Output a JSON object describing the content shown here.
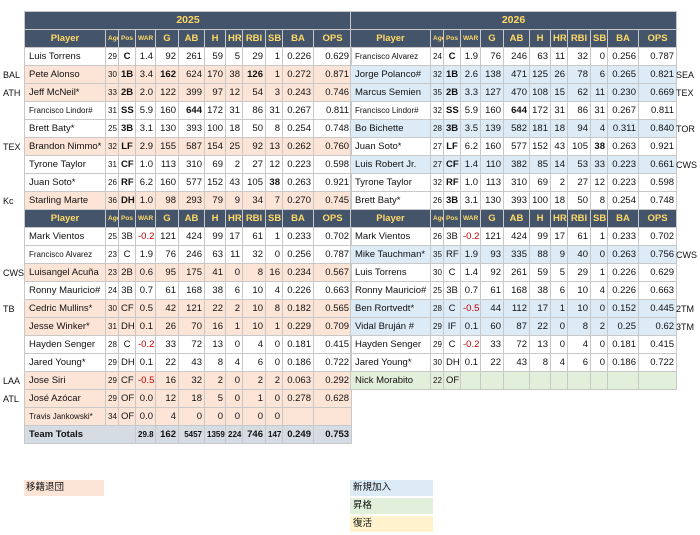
{
  "years": {
    "left": "2025",
    "right": "2026"
  },
  "headers": [
    "Player",
    "Age",
    "Pos",
    "WAR",
    "G",
    "AB",
    "H",
    "HR",
    "RBI",
    "SB",
    "BA",
    "OPS"
  ],
  "lineup_left": [
    {
      "team": "",
      "cls": "",
      "name": "Luis Torrens",
      "age": "29",
      "pos": "C",
      "war": "1.4",
      "g": "92",
      "ab": "261",
      "h": "59",
      "hr": "5",
      "rbi": "29",
      "sb": "1",
      "ba": "0.226",
      "ops": "0.629"
    },
    {
      "team": "BAL",
      "cls": "out",
      "name": "Pete Alonso",
      "age": "30",
      "pos": "1B",
      "war": "3.4",
      "g": "162",
      "ab": "624",
      "h": "170",
      "hr": "38",
      "rbi": "126",
      "sb": "1",
      "ba": "0.272",
      "ops": "0.871"
    },
    {
      "team": "ATH",
      "cls": "out",
      "name": "Jeff McNeil*",
      "age": "33",
      "pos": "2B",
      "war": "2.0",
      "g": "122",
      "ab": "399",
      "h": "97",
      "hr": "12",
      "rbi": "54",
      "sb": "3",
      "ba": "0.243",
      "ops": "0.746"
    },
    {
      "team": "",
      "cls": "",
      "name": "Francisco Lindor#",
      "age": "31",
      "pos": "SS",
      "war": "5.9",
      "g": "160",
      "ab": "644",
      "h": "172",
      "hr": "31",
      "rbi": "86",
      "sb": "31",
      "ba": "0.267",
      "ops": "0.811"
    },
    {
      "team": "",
      "cls": "",
      "name": "Brett Baty*",
      "age": "25",
      "pos": "3B",
      "war": "3.1",
      "g": "130",
      "ab": "393",
      "h": "100",
      "hr": "18",
      "rbi": "50",
      "sb": "8",
      "ba": "0.254",
      "ops": "0.748"
    },
    {
      "team": "TEX",
      "cls": "out",
      "name": "Brandon Nimmo*",
      "age": "32",
      "pos": "LF",
      "war": "2.9",
      "g": "155",
      "ab": "587",
      "h": "154",
      "hr": "25",
      "rbi": "92",
      "sb": "13",
      "ba": "0.262",
      "ops": "0.760"
    },
    {
      "team": "",
      "cls": "",
      "name": "Tyrone Taylor",
      "age": "31",
      "pos": "CF",
      "war": "1.0",
      "g": "113",
      "ab": "310",
      "h": "69",
      "hr": "2",
      "rbi": "27",
      "sb": "12",
      "ba": "0.223",
      "ops": "0.598"
    },
    {
      "team": "",
      "cls": "",
      "name": "Juan Soto*",
      "age": "26",
      "pos": "RF",
      "war": "6.2",
      "g": "160",
      "ab": "577",
      "h": "152",
      "hr": "43",
      "rbi": "105",
      "sb": "38",
      "ba": "0.263",
      "ops": "0.921"
    },
    {
      "team": "Kc",
      "cls": "out",
      "name": "Starling Marte",
      "age": "36",
      "pos": "DH",
      "war": "1.0",
      "g": "98",
      "ab": "293",
      "h": "79",
      "hr": "9",
      "rbi": "34",
      "sb": "7",
      "ba": "0.270",
      "ops": "0.745"
    }
  ],
  "bench_left": [
    {
      "team": "",
      "cls": "",
      "name": "Mark Vientos",
      "age": "25",
      "pos": "3B",
      "war": "-0.2",
      "g": "121",
      "ab": "424",
      "h": "99",
      "hr": "17",
      "rbi": "61",
      "sb": "1",
      "ba": "0.233",
      "ops": "0.702"
    },
    {
      "team": "",
      "cls": "",
      "name": "Francisco Alvarez",
      "age": "23",
      "pos": "C",
      "war": "1.9",
      "g": "76",
      "ab": "246",
      "h": "63",
      "hr": "11",
      "rbi": "32",
      "sb": "0",
      "ba": "0.256",
      "ops": "0.787"
    },
    {
      "team": "CWS",
      "cls": "out",
      "name": "Luisangel Acuña",
      "age": "23",
      "pos": "2B",
      "war": "0.6",
      "g": "95",
      "ab": "175",
      "h": "41",
      "hr": "0",
      "rbi": "8",
      "sb": "16",
      "ba": "0.234",
      "ops": "0.567"
    },
    {
      "team": "",
      "cls": "",
      "name": "Ronny Mauricio#",
      "age": "24",
      "pos": "3B",
      "war": "0.7",
      "g": "61",
      "ab": "168",
      "h": "38",
      "hr": "6",
      "rbi": "10",
      "sb": "4",
      "ba": "0.226",
      "ops": "0.663"
    },
    {
      "team": "TB",
      "cls": "out",
      "name": "Cedric Mullins*",
      "age": "30",
      "pos": "CF",
      "war": "0.5",
      "g": "42",
      "ab": "121",
      "h": "22",
      "hr": "2",
      "rbi": "10",
      "sb": "8",
      "ba": "0.182",
      "ops": "0.565"
    },
    {
      "team": "",
      "cls": "out",
      "name": "Jesse Winker*",
      "age": "31",
      "pos": "DH",
      "war": "0.1",
      "g": "26",
      "ab": "70",
      "h": "16",
      "hr": "1",
      "rbi": "10",
      "sb": "1",
      "ba": "0.229",
      "ops": "0.709"
    },
    {
      "team": "",
      "cls": "",
      "name": "Hayden Senger",
      "age": "28",
      "pos": "C",
      "war": "-0.2",
      "g": "33",
      "ab": "72",
      "h": "13",
      "hr": "0",
      "rbi": "4",
      "sb": "0",
      "ba": "0.181",
      "ops": "0.415"
    },
    {
      "team": "",
      "cls": "",
      "name": "Jared Young*",
      "age": "29",
      "pos": "DH",
      "war": "0.1",
      "g": "22",
      "ab": "43",
      "h": "8",
      "hr": "4",
      "rbi": "6",
      "sb": "0",
      "ba": "0.186",
      "ops": "0.722"
    },
    {
      "team": "LAA",
      "cls": "out",
      "name": "Jose Siri",
      "age": "29",
      "pos": "CF",
      "war": "-0.5",
      "g": "16",
      "ab": "32",
      "h": "2",
      "hr": "0",
      "rbi": "2",
      "sb": "2",
      "ba": "0.063",
      "ops": "0.292"
    },
    {
      "team": "ATL",
      "cls": "out",
      "name": "José Azócar",
      "age": "29",
      "pos": "OF",
      "war": "0.0",
      "g": "12",
      "ab": "18",
      "h": "5",
      "hr": "0",
      "rbi": "1",
      "sb": "0",
      "ba": "0.278",
      "ops": "0.628"
    },
    {
      "team": "",
      "cls": "out",
      "name": "Travis Jankowski*",
      "age": "34",
      "pos": "OF",
      "war": "0.0",
      "g": "4",
      "ab": "0",
      "h": "0",
      "hr": "0",
      "rbi": "0",
      "sb": "0",
      "ba": "",
      "ops": ""
    }
  ],
  "totals": {
    "label": "Team Totals",
    "war": "29.8",
    "g": "162",
    "ab": "5457",
    "h": "1359",
    "hr": "224",
    "rbi": "746",
    "sb": "147",
    "ba": "0.249",
    "ops": "0.753"
  },
  "lineup_right": [
    {
      "team": "",
      "cls": "",
      "name": "Francisco Alvarez",
      "age": "24",
      "pos": "C",
      "war": "1.9",
      "g": "76",
      "ab": "246",
      "h": "63",
      "hr": "11",
      "rbi": "32",
      "sb": "0",
      "ba": "0.256",
      "ops": "0.787"
    },
    {
      "team": "SEA",
      "cls": "newp",
      "name": "Jorge Polanco#",
      "age": "32",
      "pos": "1B",
      "war": "2.6",
      "g": "138",
      "ab": "471",
      "h": "125",
      "hr": "26",
      "rbi": "78",
      "sb": "6",
      "ba": "0.265",
      "ops": "0.821"
    },
    {
      "team": "TEX",
      "cls": "newp",
      "name": "Marcus Semien",
      "age": "35",
      "pos": "2B",
      "war": "3.3",
      "g": "127",
      "ab": "470",
      "h": "108",
      "hr": "15",
      "rbi": "62",
      "sb": "11",
      "ba": "0.230",
      "ops": "0.669"
    },
    {
      "team": "",
      "cls": "",
      "name": "Francisco Lindor#",
      "age": "32",
      "pos": "SS",
      "war": "5.9",
      "g": "160",
      "ab": "644",
      "h": "172",
      "hr": "31",
      "rbi": "86",
      "sb": "31",
      "ba": "0.267",
      "ops": "0.811"
    },
    {
      "team": "TOR",
      "cls": "newp",
      "name": "Bo Bichette",
      "age": "28",
      "pos": "3B",
      "war": "3.5",
      "g": "139",
      "ab": "582",
      "h": "181",
      "hr": "18",
      "rbi": "94",
      "sb": "4",
      "ba": "0.311",
      "ops": "0.840"
    },
    {
      "team": "",
      "cls": "",
      "name": "Juan Soto*",
      "age": "27",
      "pos": "LF",
      "war": "6.2",
      "g": "160",
      "ab": "577",
      "h": "152",
      "hr": "43",
      "rbi": "105",
      "sb": "38",
      "ba": "0.263",
      "ops": "0.921"
    },
    {
      "team": "CWS",
      "cls": "newp",
      "name": "Luis Robert Jr.",
      "age": "27",
      "pos": "CF",
      "war": "1.4",
      "g": "110",
      "ab": "382",
      "h": "85",
      "hr": "14",
      "rbi": "53",
      "sb": "33",
      "ba": "0.223",
      "ops": "0.661"
    },
    {
      "team": "",
      "cls": "",
      "name": "Tyrone Taylor",
      "age": "32",
      "pos": "RF",
      "war": "1.0",
      "g": "113",
      "ab": "310",
      "h": "69",
      "hr": "2",
      "rbi": "27",
      "sb": "12",
      "ba": "0.223",
      "ops": "0.598"
    },
    {
      "team": "",
      "cls": "",
      "name": "Brett Baty*",
      "age": "26",
      "pos": "3B",
      "war": "3.1",
      "g": "130",
      "ab": "393",
      "h": "100",
      "hr": "18",
      "rbi": "50",
      "sb": "8",
      "ba": "0.254",
      "ops": "0.748"
    }
  ],
  "bench_right": [
    {
      "team": "",
      "cls": "",
      "name": "Mark Vientos",
      "age": "26",
      "pos": "3B",
      "war": "-0.2",
      "g": "121",
      "ab": "424",
      "h": "99",
      "hr": "17",
      "rbi": "61",
      "sb": "1",
      "ba": "0.233",
      "ops": "0.702"
    },
    {
      "team": "CWS",
      "cls": "newp",
      "name": "Mike Tauchman*",
      "age": "35",
      "pos": "RF",
      "war": "1.9",
      "g": "93",
      "ab": "335",
      "h": "88",
      "hr": "9",
      "rbi": "40",
      "sb": "0",
      "ba": "0.263",
      "ops": "0.756"
    },
    {
      "team": "",
      "cls": "",
      "name": "Luis Torrens",
      "age": "30",
      "pos": "C",
      "war": "1.4",
      "g": "92",
      "ab": "261",
      "h": "59",
      "hr": "5",
      "rbi": "29",
      "sb": "1",
      "ba": "0.226",
      "ops": "0.629"
    },
    {
      "team": "",
      "cls": "",
      "name": "Ronny Mauricio#",
      "age": "25",
      "pos": "3B",
      "war": "0.7",
      "g": "61",
      "ab": "168",
      "h": "38",
      "hr": "6",
      "rbi": "10",
      "sb": "4",
      "ba": "0.226",
      "ops": "0.663"
    },
    {
      "team": "2TM",
      "cls": "newp",
      "name": "Ben Rortvedt*",
      "age": "28",
      "pos": "C",
      "war": "-0.5",
      "g": "44",
      "ab": "112",
      "h": "17",
      "hr": "1",
      "rbi": "10",
      "sb": "0",
      "ba": "0.152",
      "ops": "0.445"
    },
    {
      "team": "3TM",
      "cls": "newp",
      "name": "Vidal Bruján #",
      "age": "29",
      "pos": "IF",
      "war": "0.1",
      "g": "60",
      "ab": "87",
      "h": "22",
      "hr": "0",
      "rbi": "8",
      "sb": "2",
      "ba": "0.25",
      "ops": "0.62"
    },
    {
      "team": "",
      "cls": "",
      "name": "Hayden Senger",
      "age": "29",
      "pos": "C",
      "war": "-0.2",
      "g": "33",
      "ab": "72",
      "h": "13",
      "hr": "0",
      "rbi": "4",
      "sb": "0",
      "ba": "0.181",
      "ops": "0.415"
    },
    {
      "team": "",
      "cls": "",
      "name": "Jared Young*",
      "age": "30",
      "pos": "DH",
      "war": "0.1",
      "g": "22",
      "ab": "43",
      "h": "8",
      "hr": "4",
      "rbi": "6",
      "sb": "0",
      "ba": "0.186",
      "ops": "0.722"
    },
    {
      "team": "",
      "cls": "prom",
      "name": "Nick Morabito",
      "age": "22",
      "pos": "OF",
      "war": "",
      "g": "",
      "ab": "",
      "h": "",
      "hr": "",
      "rbi": "",
      "sb": "",
      "ba": "",
      "ops": ""
    }
  ],
  "legend": {
    "departed": "移籍退団",
    "new_signing": "新規加入",
    "promotion": "昇格",
    "returning": "復活"
  },
  "colors": {
    "header_bg": "#44546a",
    "header_text": "#ffd966",
    "departed": "#fce4d6",
    "new_signing": "#ddebf7",
    "promotion": "#e2efda",
    "returning": "#fff2cc",
    "totals": "#d6dce4",
    "negative": "#c00000"
  }
}
